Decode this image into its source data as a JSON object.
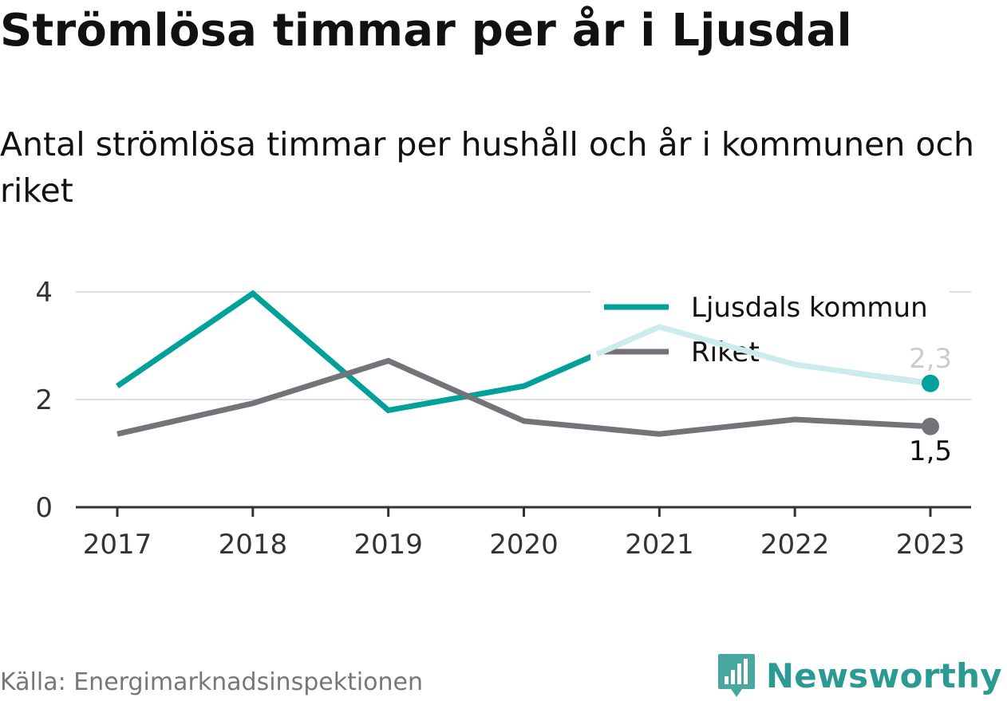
{
  "header": {
    "title": "Strömlösa timmar per år i Ljusdal",
    "subtitle": "Antal strömlösa timmar per hushåll och år i kommunen och riket"
  },
  "footer": {
    "source": "Källa: Energimarknadsinspektionen",
    "brand": "Newsworthy",
    "brand_icon": "bar-chart-icon"
  },
  "colors": {
    "kommun": "#00a19a",
    "kommun_faded": "#cbecea",
    "riket": "#75737a",
    "grid": "#dddddd",
    "axis": "#333333",
    "end_label_faded": "#cccccc",
    "end_label": "#111111"
  },
  "chart_data": {
    "type": "line",
    "title": "Strömlösa timmar per år i Ljusdal",
    "subtitle": "Antal strömlösa timmar per hushåll och år i kommunen och riket",
    "categories": [
      "2017",
      "2018",
      "2019",
      "2020",
      "2021",
      "2022",
      "2023"
    ],
    "ylim": [
      0,
      4
    ],
    "yticks": [
      "0",
      "2",
      "4"
    ],
    "grid": true,
    "legend_position": "top-right",
    "series": [
      {
        "name": "Ljusdals kommun",
        "values": [
          2.25,
          3.97,
          1.8,
          2.25,
          3.35,
          2.65,
          2.3
        ],
        "end_label": "2,3"
      },
      {
        "name": "Riket",
        "values": [
          1.36,
          1.93,
          2.72,
          1.6,
          1.36,
          1.63,
          1.5
        ],
        "end_label": "1,5"
      }
    ]
  }
}
